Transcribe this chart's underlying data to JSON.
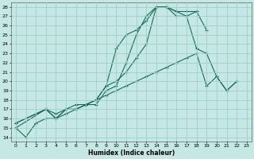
{
  "title": "",
  "xlabel": "Humidex (Indice chaleur)",
  "ylabel": "",
  "bg_color": "#c5e8e5",
  "grid_color": "#9ecece",
  "line_color": "#1a6b5a",
  "xlim": [
    -0.5,
    23.5
  ],
  "ylim": [
    13.5,
    28.5
  ],
  "yticks": [
    14,
    15,
    16,
    17,
    18,
    19,
    20,
    21,
    22,
    23,
    24,
    25,
    26,
    27,
    28
  ],
  "xticks": [
    0,
    1,
    2,
    3,
    4,
    5,
    6,
    7,
    8,
    9,
    10,
    11,
    12,
    13,
    14,
    15,
    16,
    17,
    18,
    19,
    20,
    21,
    22,
    23
  ],
  "series": [
    {
      "x": [
        0,
        1,
        2,
        3,
        4,
        5,
        6,
        7,
        8,
        9,
        10,
        11,
        12,
        13,
        14,
        15,
        16,
        17,
        18,
        19
      ],
      "y": [
        15.0,
        14.0,
        15.5,
        16.0,
        16.0,
        16.5,
        17.0,
        17.5,
        17.5,
        19.0,
        19.5,
        22.0,
        25.0,
        27.0,
        28.0,
        28.0,
        27.5,
        27.0,
        27.5,
        25.5
      ]
    },
    {
      "x": [
        0,
        3,
        4,
        5,
        6,
        7,
        8,
        9,
        10,
        11,
        12,
        13,
        14,
        15,
        16,
        17,
        18
      ],
      "y": [
        15.0,
        17.0,
        16.0,
        17.0,
        17.0,
        17.5,
        18.0,
        19.5,
        23.5,
        25.0,
        25.5,
        26.5,
        28.0,
        28.0,
        27.5,
        27.5,
        27.5
      ]
    },
    {
      "x": [
        0,
        3,
        4,
        5,
        6,
        7,
        8,
        9,
        10,
        11,
        12,
        13,
        14,
        15,
        16,
        17,
        18,
        19,
        20,
        21,
        22
      ],
      "y": [
        15.5,
        17.0,
        16.5,
        17.0,
        17.0,
        17.5,
        18.0,
        19.5,
        20.0,
        21.0,
        22.5,
        24.0,
        28.0,
        28.0,
        27.0,
        27.0,
        23.5,
        23.0,
        20.5,
        19.0,
        20.0
      ]
    },
    {
      "x": [
        0,
        3,
        4,
        5,
        6,
        7,
        8,
        9,
        10,
        11,
        12,
        13,
        14,
        15,
        16,
        17,
        18,
        19,
        20,
        21,
        22
      ],
      "y": [
        15.5,
        17.0,
        16.0,
        17.0,
        17.5,
        17.5,
        18.0,
        18.5,
        19.0,
        19.5,
        20.0,
        20.5,
        21.0,
        21.5,
        22.0,
        22.5,
        23.0,
        19.5,
        20.5,
        19.0,
        20.0
      ]
    }
  ]
}
